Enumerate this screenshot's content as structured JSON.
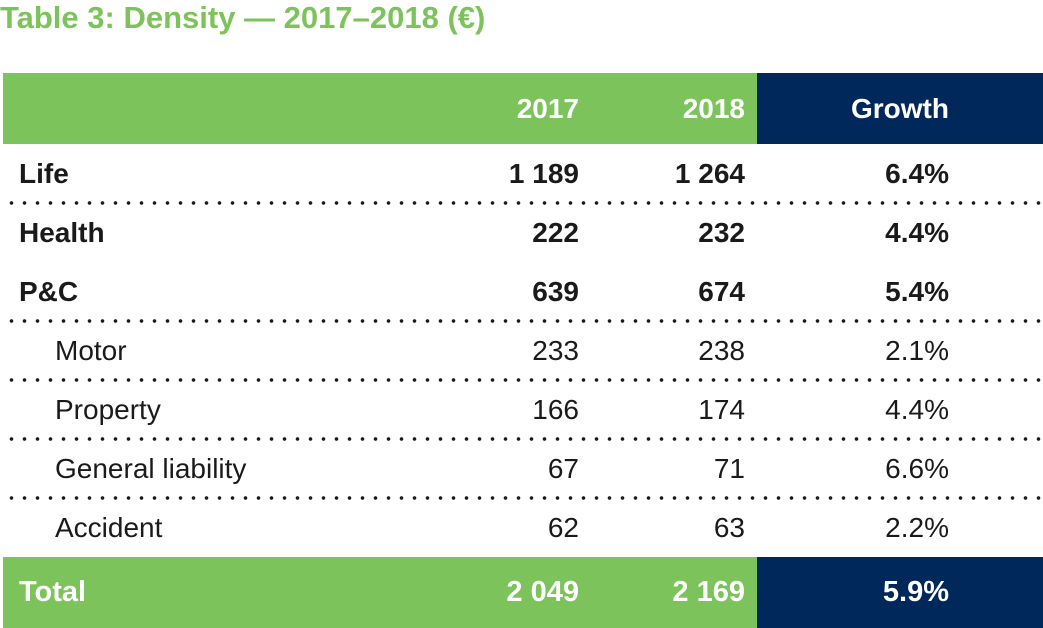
{
  "title": "Table 3: Density — 2017–2018 (€)",
  "chart_data": {
    "type": "table",
    "title": "Table 3: Density — 2017–2018 (€)",
    "columns": [
      "",
      "2017",
      "2018",
      "Growth"
    ],
    "rows": [
      {
        "label": "Life",
        "y2017": "1 189",
        "y2018": "1 264",
        "growth": "6.4%",
        "level": "main"
      },
      {
        "label": "Health",
        "y2017": "222",
        "y2018": "232",
        "growth": "4.4%",
        "level": "main"
      },
      {
        "label": "P&C",
        "y2017": "639",
        "y2018": "674",
        "growth": "5.4%",
        "level": "main"
      },
      {
        "label": "Motor",
        "y2017": "233",
        "y2018": "238",
        "growth": "2.1%",
        "level": "sub"
      },
      {
        "label": "Property",
        "y2017": "166",
        "y2018": "174",
        "growth": "4.4%",
        "level": "sub"
      },
      {
        "label": "General liability",
        "y2017": "67",
        "y2018": "71",
        "growth": "6.6%",
        "level": "sub"
      },
      {
        "label": "Accident",
        "y2017": "62",
        "y2018": "63",
        "growth": "2.2%",
        "level": "sub"
      }
    ],
    "total": {
      "label": "Total",
      "y2017": "2 049",
      "y2018": "2 169",
      "growth": "5.9%"
    }
  },
  "colors": {
    "accent_green": "#7dc35b",
    "accent_navy": "#00285a",
    "text": "#1a1a1a"
  }
}
